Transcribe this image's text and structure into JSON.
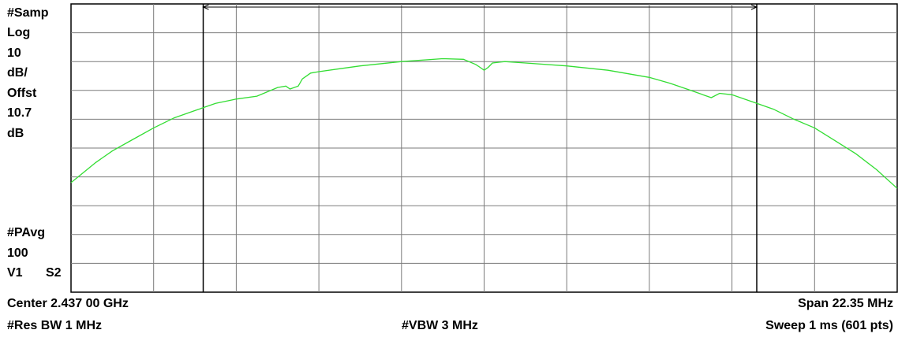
{
  "left_panel": {
    "detector": "#Samp",
    "scale_type": "Log",
    "scale_value": "10",
    "scale_unit": "dB/",
    "offset_label": "Offst",
    "offset_value": "10.7",
    "offset_unit": "dB",
    "averaging_label": "#PAvg",
    "averaging_count": "100",
    "v1": "V1",
    "s2": "S2"
  },
  "bottom_bar": {
    "center": "Center 2.437 00 GHz",
    "span": "Span 22.35 MHz",
    "res_bw": "#Res BW 1 MHz",
    "vbw": "#VBW 3 MHz",
    "sweep": "Sweep 1 ms (601 pts)"
  },
  "chart_data": {
    "type": "line",
    "x_center_ghz": 2.437,
    "x_span_mhz": 22.35,
    "x_divisions": 10,
    "y_divisions": 10,
    "scale_db_per_div": 10,
    "grid": true,
    "trace_color": "#33dd33",
    "series": [
      {
        "x_div": [
          0,
          0.15,
          0.3,
          0.5,
          0.75,
          1.0,
          1.25,
          1.5,
          1.75,
          2.0,
          2.25,
          2.5,
          2.6,
          2.65,
          2.75,
          2.8,
          2.9,
          3.0,
          3.25,
          3.5,
          4.0,
          4.5,
          4.75,
          4.9,
          4.95,
          5.0,
          5.05,
          5.1,
          5.25,
          5.5,
          6.0,
          6.5,
          7.0,
          7.25,
          7.5,
          7.75,
          7.85,
          8.0,
          8.25,
          8.5,
          8.75,
          9.0,
          9.25,
          9.5,
          9.75,
          10.0
        ],
        "y_div_from_top": [
          6.2,
          5.85,
          5.5,
          5.1,
          4.7,
          4.3,
          3.95,
          3.7,
          3.45,
          3.3,
          3.2,
          2.9,
          2.85,
          2.95,
          2.85,
          2.6,
          2.4,
          2.35,
          2.25,
          2.15,
          2.0,
          1.9,
          1.92,
          2.1,
          2.2,
          2.3,
          2.2,
          2.05,
          2.0,
          2.05,
          2.15,
          2.3,
          2.55,
          2.75,
          3.0,
          3.25,
          3.1,
          3.15,
          3.4,
          3.65,
          4.0,
          4.3,
          4.75,
          5.2,
          5.75,
          6.4
        ]
      }
    ],
    "channel_markers_x_div": [
      1.6,
      8.3
    ]
  }
}
